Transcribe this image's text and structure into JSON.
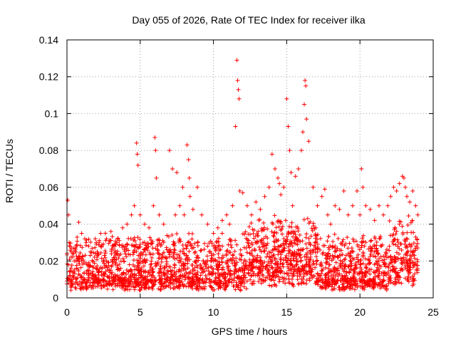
{
  "chart_data": {
    "type": "scatter",
    "title": "Day 055 of 2026, Rate Of TEC Index for receiver ilka",
    "xlabel": "GPS time / hours",
    "ylabel": "ROTI / TECUs",
    "xlim": [
      0,
      25
    ],
    "ylim": [
      0,
      0.14
    ],
    "xticks": [
      0,
      5,
      10,
      15,
      20,
      25
    ],
    "xtick_labels": [
      "0",
      "5",
      "10",
      "15",
      "20",
      "25"
    ],
    "yticks": [
      0,
      0.02,
      0.04,
      0.06,
      0.08,
      0.1,
      0.12,
      0.14
    ],
    "ytick_labels": [
      "0",
      "0.02",
      "0.04",
      "0.06",
      "0.08",
      "0.1",
      "0.12",
      "0.14"
    ],
    "grid": true,
    "marker": "+",
    "color": "#ff0000",
    "series": [
      {
        "name": "ROTI",
        "x": [
          0.05,
          0.1,
          0.15,
          0.2,
          0.3,
          0.5,
          0.8,
          1.0,
          1.3,
          1.6,
          2.0,
          2.3,
          2.7,
          3.0,
          3.4,
          3.8,
          4.1,
          4.4,
          4.6,
          4.75,
          4.8,
          4.85,
          5.0,
          5.3,
          5.6,
          5.9,
          6.0,
          6.05,
          6.1,
          6.3,
          6.6,
          7.0,
          7.2,
          7.4,
          7.5,
          7.7,
          7.9,
          8.0,
          8.2,
          8.3,
          8.35,
          8.4,
          8.6,
          8.9,
          9.2,
          9.6,
          10.0,
          10.3,
          10.6,
          10.9,
          11.1,
          11.3,
          11.5,
          11.6,
          11.65,
          11.7,
          11.75,
          11.8,
          12.0,
          12.3,
          12.6,
          12.9,
          13.2,
          13.5,
          13.8,
          14.0,
          14.2,
          14.4,
          14.5,
          14.6,
          14.8,
          15.0,
          15.1,
          15.2,
          15.3,
          15.4,
          15.6,
          15.8,
          16.0,
          16.1,
          16.2,
          16.25,
          16.3,
          16.35,
          16.5,
          16.8,
          17.1,
          17.4,
          17.6,
          17.8,
          18.0,
          18.3,
          18.6,
          18.9,
          19.2,
          19.5,
          19.8,
          20.0,
          20.1,
          20.2,
          20.4,
          20.7,
          21.0,
          21.3,
          21.6,
          21.9,
          22.1,
          22.3,
          22.5,
          22.7,
          22.9,
          23.0,
          23.1,
          23.2,
          23.4,
          23.6,
          23.8,
          23.95
        ],
        "y": [
          0.053,
          0.045,
          0.03,
          0.028,
          0.025,
          0.02,
          0.041,
          0.035,
          0.03,
          0.025,
          0.03,
          0.035,
          0.032,
          0.036,
          0.03,
          0.038,
          0.04,
          0.045,
          0.05,
          0.084,
          0.078,
          0.072,
          0.045,
          0.04,
          0.038,
          0.05,
          0.087,
          0.08,
          0.065,
          0.045,
          0.04,
          0.08,
          0.07,
          0.045,
          0.068,
          0.05,
          0.06,
          0.045,
          0.083,
          0.075,
          0.065,
          0.055,
          0.048,
          0.06,
          0.045,
          0.04,
          0.035,
          0.038,
          0.042,
          0.045,
          0.04,
          0.05,
          0.093,
          0.129,
          0.118,
          0.113,
          0.108,
          0.058,
          0.057,
          0.05,
          0.045,
          0.052,
          0.048,
          0.055,
          0.06,
          0.078,
          0.07,
          0.065,
          0.062,
          0.056,
          0.06,
          0.108,
          0.093,
          0.08,
          0.068,
          0.05,
          0.066,
          0.07,
          0.08,
          0.09,
          0.105,
          0.118,
          0.115,
          0.097,
          0.085,
          0.06,
          0.05,
          0.055,
          0.059,
          0.045,
          0.04,
          0.05,
          0.048,
          0.058,
          0.045,
          0.05,
          0.058,
          0.045,
          0.07,
          0.06,
          0.05,
          0.048,
          0.042,
          0.05,
          0.045,
          0.05,
          0.055,
          0.06,
          0.058,
          0.062,
          0.066,
          0.065,
          0.06,
          0.055,
          0.052,
          0.058,
          0.05,
          0.045
        ]
      }
    ]
  }
}
